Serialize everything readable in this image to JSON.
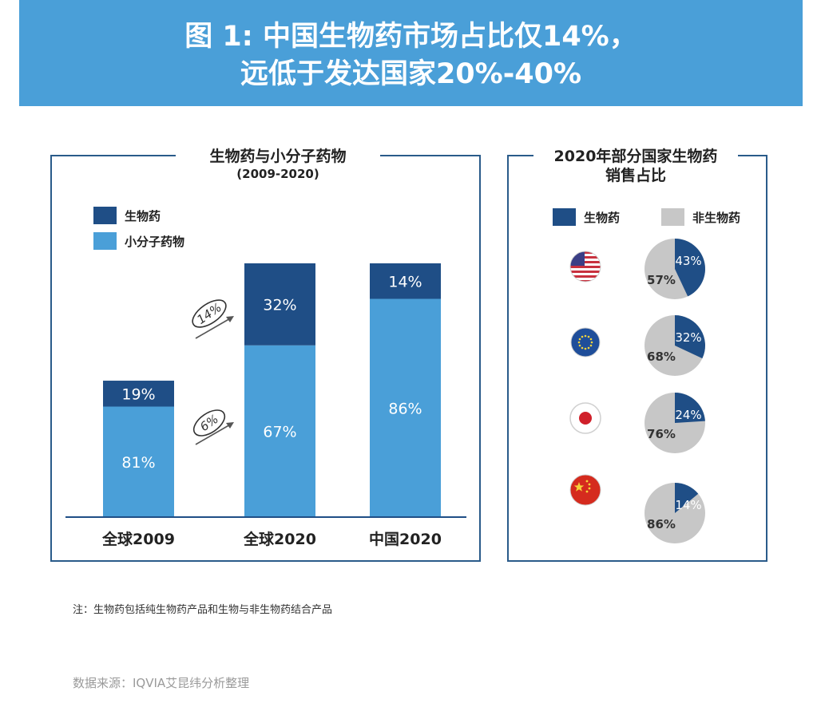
{
  "header": {
    "line1": "图 1: 中国生物药市场占比仅14%，",
    "line2": "远低于发达国家20%-40%"
  },
  "left_panel": {
    "title": "生物药与小分子药物",
    "subtitle": "(2009-2020)",
    "legend": [
      {
        "label": "生物药",
        "color": "#1f4e86"
      },
      {
        "label": "小分子药物",
        "color": "#4a9fd8"
      }
    ],
    "growth_annotations": [
      "14%",
      "6%"
    ]
  },
  "right_panel": {
    "title_line1": "2020年部分国家生物药",
    "title_line2": "销售占比",
    "legend": [
      {
        "label": "生物药",
        "color": "#1f4e86"
      },
      {
        "label": "非生物药",
        "color": "#c7c7c7"
      }
    ],
    "flags": [
      "us-flag-icon",
      "eu-flag-icon",
      "japan-flag-icon",
      "china-flag-icon"
    ]
  },
  "chart_data": [
    {
      "type": "bar",
      "title": "生物药与小分子药物",
      "subtitle": "(2009-2020)",
      "categories": [
        "全球2009",
        "全球2020",
        "中国2020"
      ],
      "series": [
        {
          "name": "小分子药物",
          "values": [
            81,
            67,
            86
          ],
          "labels": [
            "81%",
            "67%",
            "86%"
          ],
          "color": "#4a9fd8"
        },
        {
          "name": "生物药",
          "values": [
            19,
            32,
            14
          ],
          "labels": [
            "19%",
            "32%",
            "14%"
          ],
          "color": "#1f4e86"
        }
      ],
      "relative_totals": [
        1.0,
        1.86,
        1.86
      ]
    },
    {
      "type": "pie",
      "title": "2020年部分国家生物药销售占比",
      "series": [
        {
          "name": "生物药",
          "values": [
            43,
            32,
            24,
            14
          ],
          "labels": [
            "43%",
            "32%",
            "24%",
            "14%"
          ],
          "color": "#1f4e86"
        },
        {
          "name": "非生物药",
          "values": [
            57,
            68,
            76,
            86
          ],
          "labels": [
            "57%",
            "68%",
            "76%",
            "86%"
          ],
          "color": "#c7c7c7"
        }
      ]
    }
  ],
  "footnote": "注：生物药包括纯生物药产品和生物与非生物药结合产品",
  "source": "数据来源：IQVIA艾昆纬分析整理"
}
